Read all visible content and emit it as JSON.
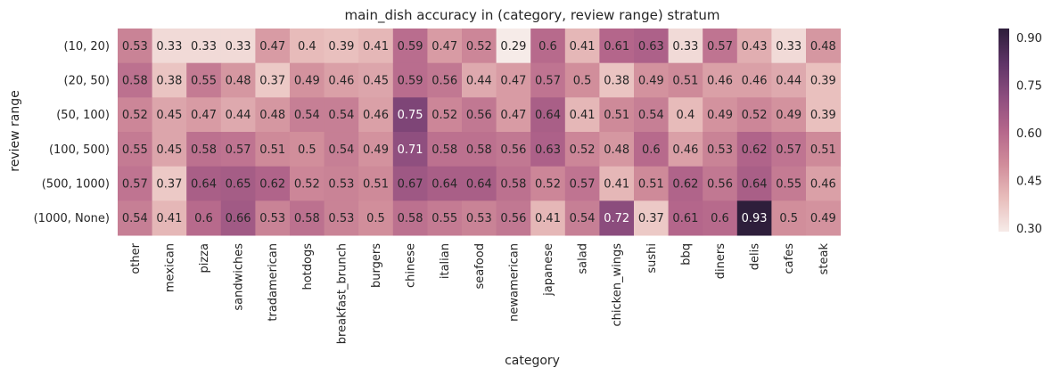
{
  "chart_data": {
    "type": "heatmap",
    "title": "main_dish accuracy in (category, review range) stratum",
    "xlabel": "category",
    "ylabel": "review range",
    "x_categories": [
      "other",
      "mexican",
      "pizza",
      "sandwiches",
      "tradamerican",
      "hotdogs",
      "breakfast_brunch",
      "burgers",
      "chinese",
      "italian",
      "seafood",
      "newamerican",
      "japanese",
      "salad",
      "chicken_wings",
      "sushi",
      "bbq",
      "diners",
      "delis",
      "cafes",
      "steak"
    ],
    "y_categories": [
      "(10, 20)",
      "(20, 50)",
      "(50, 100)",
      "(100, 500)",
      "(500, 1000)",
      "(1000, None)"
    ],
    "values": [
      [
        "0.53",
        "0.33",
        "0.33",
        "0.33",
        "0.47",
        "0.4",
        "0.39",
        "0.41",
        "0.59",
        "0.47",
        "0.52",
        "0.29",
        "0.6",
        "0.41",
        "0.61",
        "0.63",
        "0.33",
        "0.57",
        "0.43",
        "0.33",
        "0.48"
      ],
      [
        "0.58",
        "0.38",
        "0.55",
        "0.48",
        "0.37",
        "0.49",
        "0.46",
        "0.45",
        "0.59",
        "0.56",
        "0.44",
        "0.47",
        "0.57",
        "0.5",
        "0.38",
        "0.49",
        "0.51",
        "0.46",
        "0.46",
        "0.44",
        "0.39"
      ],
      [
        "0.52",
        "0.45",
        "0.47",
        "0.44",
        "0.48",
        "0.54",
        "0.54",
        "0.46",
        "0.75",
        "0.52",
        "0.56",
        "0.47",
        "0.64",
        "0.41",
        "0.51",
        "0.54",
        "0.4",
        "0.49",
        "0.52",
        "0.49",
        "0.39"
      ],
      [
        "0.55",
        "0.45",
        "0.58",
        "0.57",
        "0.51",
        "0.5",
        "0.54",
        "0.49",
        "0.71",
        "0.58",
        "0.58",
        "0.56",
        "0.63",
        "0.52",
        "0.48",
        "0.6",
        "0.46",
        "0.53",
        "0.62",
        "0.57",
        "0.51"
      ],
      [
        "0.57",
        "0.37",
        "0.64",
        "0.65",
        "0.62",
        "0.52",
        "0.53",
        "0.51",
        "0.67",
        "0.64",
        "0.64",
        "0.58",
        "0.52",
        "0.57",
        "0.41",
        "0.51",
        "0.62",
        "0.56",
        "0.64",
        "0.55",
        "0.46"
      ],
      [
        "0.54",
        "0.41",
        "0.6",
        "0.66",
        "0.53",
        "0.58",
        "0.53",
        "0.5",
        "0.58",
        "0.55",
        "0.53",
        "0.56",
        "0.41",
        "0.54",
        "0.72",
        "0.37",
        "0.61",
        "0.6",
        "0.93",
        "0.5",
        "0.49"
      ]
    ],
    "colorbar": {
      "ticks": [
        "0.30",
        "0.45",
        "0.60",
        "0.75",
        "0.90"
      ],
      "range": [
        0.29,
        0.93
      ]
    },
    "colormap": [
      "#f6ebe8",
      "#e8bdbb",
      "#d08c9a",
      "#b4668b",
      "#8c4d7e",
      "#5e3466",
      "#2e1e3b"
    ],
    "light_text_threshold": 0.7,
    "colors": {
      "dark_text": "#262626",
      "light_text": "#ffffff"
    }
  }
}
